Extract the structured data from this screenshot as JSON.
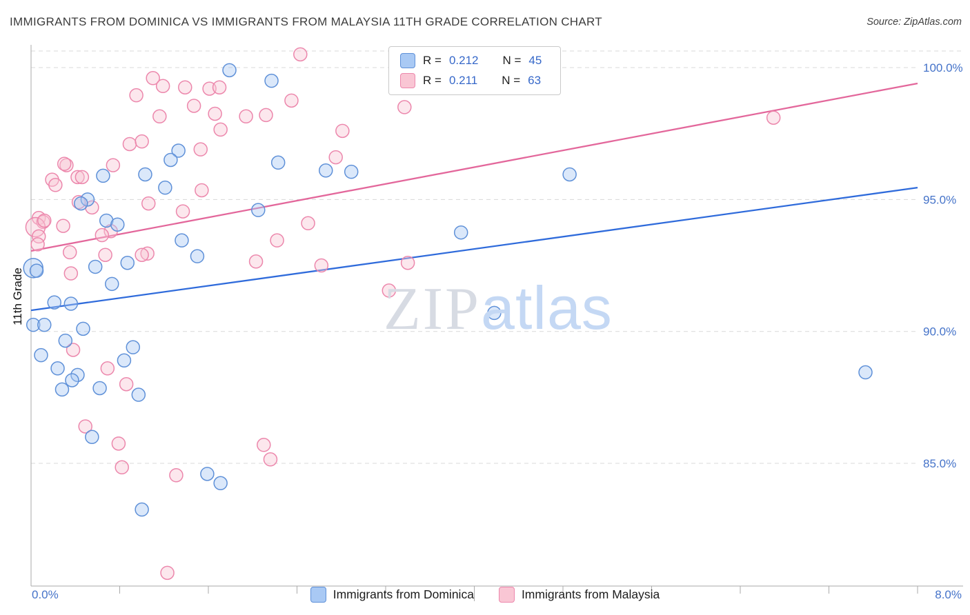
{
  "header": {
    "title": "IMMIGRANTS FROM DOMINICA VS IMMIGRANTS FROM MALAYSIA 11TH GRADE CORRELATION CHART",
    "source": "Source: ZipAtlas.com"
  },
  "watermark": {
    "zip": "ZIP",
    "atlas": "atlas"
  },
  "axes": {
    "y_label": "11th Grade",
    "x_min_label": "0.0%",
    "x_max_label": "8.0%",
    "y_tick_labels": [
      "100.0%",
      "95.0%",
      "90.0%",
      "85.0%"
    ]
  },
  "legend_box": {
    "series": [
      {
        "r_label": "R =",
        "r": "0.212",
        "n_label": "N =",
        "n": "45",
        "fill": "#a9c9f4",
        "border": "#5e90d8"
      },
      {
        "r_label": "R =",
        "r": "0.211",
        "n_label": "N =",
        "n": "63",
        "fill": "#f9c6d4",
        "border": "#ec87ac"
      }
    ]
  },
  "bottom_legend": [
    {
      "label": "Immigrants from Dominica",
      "fill": "#a9c9f4",
      "border": "#5e90d8"
    },
    {
      "label": "Immigrants from Malaysia",
      "fill": "#f9c6d4",
      "border": "#ec87ac"
    }
  ],
  "chart_data": {
    "type": "scatter",
    "title": "Immigrants from Dominica vs Immigrants from Malaysia 11th Grade Correlation Chart",
    "xlabel": "",
    "ylabel": "11th Grade",
    "x_range": [
      0,
      8
    ],
    "x_unit": "%",
    "y_unit": "%",
    "y_ticks": [
      100,
      95,
      90,
      85
    ],
    "y_visible_range": [
      80.3,
      100.85
    ],
    "grid": "horizontal-dashed",
    "legend_position": "top-center",
    "series": [
      {
        "name": "Immigrants from Dominica",
        "R": 0.212,
        "N": 45,
        "color_fill": "#a9c9f4",
        "color_stroke": "#5e90d8",
        "points": [
          [
            1.79,
            99.9
          ],
          [
            2.17,
            99.5
          ],
          [
            1.33,
            96.85
          ],
          [
            1.26,
            96.5
          ],
          [
            1.03,
            95.95
          ],
          [
            0.65,
            95.9
          ],
          [
            2.23,
            96.4
          ],
          [
            2.66,
            96.1
          ],
          [
            2.89,
            96.05
          ],
          [
            4.86,
            95.95
          ],
          [
            1.21,
            95.45
          ],
          [
            0.51,
            95.0
          ],
          [
            0.45,
            94.85
          ],
          [
            2.05,
            94.6
          ],
          [
            0.68,
            94.2
          ],
          [
            0.78,
            94.05
          ],
          [
            3.88,
            93.75
          ],
          [
            1.36,
            93.45
          ],
          [
            1.5,
            92.85
          ],
          [
            0.58,
            92.45
          ],
          [
            0.02,
            92.4,
            14
          ],
          [
            0.87,
            92.6
          ],
          [
            0.73,
            91.8
          ],
          [
            0.21,
            91.1
          ],
          [
            0.36,
            91.05
          ],
          [
            4.18,
            90.7
          ],
          [
            0.02,
            90.25
          ],
          [
            0.12,
            90.25
          ],
          [
            0.47,
            90.1
          ],
          [
            0.31,
            89.65
          ],
          [
            0.92,
            89.4
          ],
          [
            0.09,
            89.1
          ],
          [
            0.24,
            88.6
          ],
          [
            0.84,
            88.9
          ],
          [
            0.42,
            88.35
          ],
          [
            0.37,
            88.15
          ],
          [
            0.62,
            87.85
          ],
          [
            0.28,
            87.8
          ],
          [
            0.97,
            87.6
          ],
          [
            7.53,
            88.45
          ],
          [
            0.55,
            86.0
          ],
          [
            1.59,
            84.6
          ],
          [
            1.71,
            84.25
          ],
          [
            1.0,
            83.25
          ],
          [
            0.05,
            92.3
          ]
        ]
      },
      {
        "name": "Immigrants from Malaysia",
        "R": 0.211,
        "N": 63,
        "color_fill": "#f9c6d4",
        "color_stroke": "#ec87ac",
        "points": [
          [
            2.43,
            100.5
          ],
          [
            1.1,
            99.6
          ],
          [
            1.19,
            99.3
          ],
          [
            0.95,
            98.95
          ],
          [
            1.39,
            99.25
          ],
          [
            1.61,
            99.2
          ],
          [
            1.7,
            99.25
          ],
          [
            1.47,
            98.55
          ],
          [
            2.35,
            98.75
          ],
          [
            1.94,
            98.15
          ],
          [
            2.12,
            98.2
          ],
          [
            1.66,
            98.25
          ],
          [
            1.71,
            97.65
          ],
          [
            1.16,
            98.15
          ],
          [
            3.37,
            98.5
          ],
          [
            2.81,
            97.6
          ],
          [
            6.7,
            98.1
          ],
          [
            0.89,
            97.1
          ],
          [
            1.0,
            97.2
          ],
          [
            0.32,
            96.3
          ],
          [
            1.53,
            96.9
          ],
          [
            2.75,
            96.6
          ],
          [
            0.74,
            96.3
          ],
          [
            1.54,
            95.35
          ],
          [
            0.42,
            95.85
          ],
          [
            0.19,
            95.75
          ],
          [
            0.22,
            95.55
          ],
          [
            0.43,
            94.9
          ],
          [
            0.55,
            94.7
          ],
          [
            0.07,
            94.3
          ],
          [
            0.11,
            94.15
          ],
          [
            2.5,
            94.1
          ],
          [
            1.37,
            94.55
          ],
          [
            1.06,
            94.85
          ],
          [
            0.29,
            94.0
          ],
          [
            2.22,
            93.45
          ],
          [
            0.04,
            93.95,
            14
          ],
          [
            0.07,
            93.6
          ],
          [
            0.72,
            93.8
          ],
          [
            0.64,
            93.65
          ],
          [
            0.35,
            93.0
          ],
          [
            1.05,
            92.95
          ],
          [
            2.03,
            92.65
          ],
          [
            2.62,
            92.5
          ],
          [
            3.4,
            92.6
          ],
          [
            3.23,
            91.55
          ],
          [
            0.38,
            89.3
          ],
          [
            0.69,
            88.6
          ],
          [
            0.86,
            88.0
          ],
          [
            0.79,
            85.75
          ],
          [
            0.49,
            86.4
          ],
          [
            2.1,
            85.7
          ],
          [
            2.16,
            85.15
          ],
          [
            0.82,
            84.85
          ],
          [
            1.31,
            84.55
          ],
          [
            1.23,
            80.85
          ],
          [
            0.67,
            92.9
          ],
          [
            0.3,
            96.35
          ],
          [
            0.46,
            95.85
          ],
          [
            0.12,
            94.2
          ],
          [
            0.06,
            93.3
          ],
          [
            1.0,
            92.9
          ],
          [
            0.36,
            92.2
          ]
        ]
      }
    ],
    "trend_lines": [
      {
        "series": "Immigrants from Dominica",
        "color": "#2f6bdb",
        "x0": 0,
        "y0": 90.8,
        "x1": 8,
        "y1": 95.45
      },
      {
        "series": "Immigrants from Malaysia",
        "color": "#e3679b",
        "x0": 0,
        "y0": 93.05,
        "x1": 8,
        "y1": 99.4
      }
    ]
  }
}
